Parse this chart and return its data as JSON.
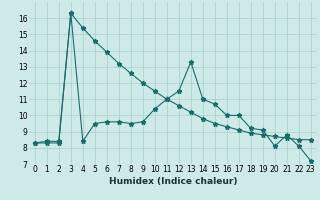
{
  "xlabel": "Humidex (Indice chaleur)",
  "x": [
    0,
    1,
    2,
    3,
    4,
    5,
    6,
    7,
    8,
    9,
    10,
    11,
    12,
    13,
    14,
    15,
    16,
    17,
    18,
    19,
    20,
    21,
    22,
    23
  ],
  "line1": [
    8.3,
    8.4,
    8.4,
    16.3,
    8.4,
    9.5,
    9.6,
    9.6,
    9.5,
    9.6,
    10.4,
    11.0,
    11.5,
    13.3,
    11.0,
    10.7,
    10.0,
    10.0,
    9.2,
    9.1,
    8.1,
    8.8,
    8.1,
    7.2
  ],
  "line2": [
    8.3,
    8.3,
    8.3,
    16.3,
    15.4,
    14.6,
    13.9,
    13.2,
    12.6,
    12.0,
    11.5,
    11.0,
    10.6,
    10.2,
    9.8,
    9.5,
    9.3,
    9.1,
    8.9,
    8.8,
    8.7,
    8.6,
    8.5,
    8.5
  ],
  "ylim": [
    7,
    17
  ],
  "yticks": [
    7,
    8,
    9,
    10,
    11,
    12,
    13,
    14,
    15,
    16
  ],
  "bg_color": "#ceeae8",
  "grid_color": "#a8cece",
  "line_color": "#1a6b6b",
  "marker": "*",
  "markersize": 3.5,
  "linewidth": 0.8,
  "xlabel_fontsize": 6.5,
  "tick_fontsize": 5.5
}
